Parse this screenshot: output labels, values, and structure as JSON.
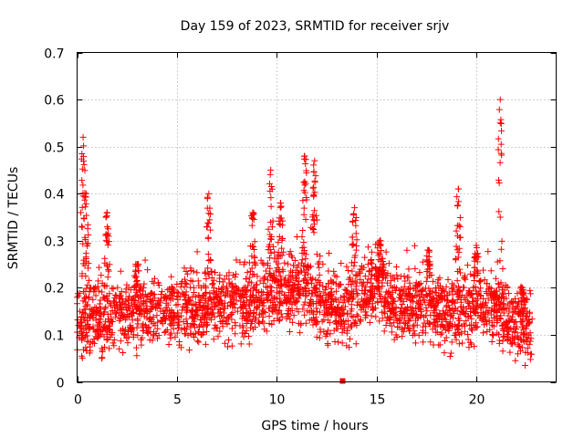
{
  "chart_data": {
    "type": "scatter",
    "title": "Day 159 of 2023, SRMTID for receiver srjv",
    "xlabel": "GPS time / hours",
    "ylabel": "SRMTID / TECUs",
    "xlim": [
      0,
      24
    ],
    "ylim": [
      0,
      0.7
    ],
    "x_ticks": [
      0,
      5,
      10,
      15,
      20
    ],
    "x_tick_labels": [
      "0",
      "5",
      "10",
      "15",
      "20"
    ],
    "y_ticks": [
      0,
      0.1,
      0.2,
      0.3,
      0.4,
      0.5,
      0.6,
      0.7
    ],
    "y_tick_labels": [
      "0",
      "0.1",
      "0.2",
      "0.3",
      "0.4",
      "0.5",
      "0.6",
      "0.7"
    ],
    "grid": true,
    "marker": "plus",
    "color": "#ff0000",
    "series": [
      {
        "name": "SRMTID",
        "description": "Dense per-satellite-pass SRMTID scatter over 24 h; baseline approx. 0.1-0.2 TECU with peaks per listed spikes",
        "baseline_profile": [
          [
            0,
            0.13
          ],
          [
            1,
            0.13
          ],
          [
            2,
            0.14
          ],
          [
            3,
            0.15
          ],
          [
            4,
            0.15
          ],
          [
            5,
            0.15
          ],
          [
            6,
            0.15
          ],
          [
            7,
            0.17
          ],
          [
            8,
            0.16
          ],
          [
            9,
            0.17
          ],
          [
            10,
            0.2
          ],
          [
            11,
            0.2
          ],
          [
            12,
            0.18
          ],
          [
            13,
            0.15
          ],
          [
            14,
            0.18
          ],
          [
            15,
            0.2
          ],
          [
            16,
            0.17
          ],
          [
            17,
            0.16
          ],
          [
            18,
            0.15
          ],
          [
            19,
            0.14
          ],
          [
            20,
            0.17
          ],
          [
            21,
            0.16
          ],
          [
            22,
            0.12
          ],
          [
            22.8,
            0.11
          ]
        ],
        "spikes": [
          {
            "x": 0.3,
            "peak": 0.52
          },
          {
            "x": 0.45,
            "peak": 0.4
          },
          {
            "x": 1.5,
            "peak": 0.36
          },
          {
            "x": 3.0,
            "peak": 0.25
          },
          {
            "x": 6.6,
            "peak": 0.4
          },
          {
            "x": 8.8,
            "peak": 0.36
          },
          {
            "x": 9.7,
            "peak": 0.45
          },
          {
            "x": 10.2,
            "peak": 0.38
          },
          {
            "x": 11.4,
            "peak": 0.48
          },
          {
            "x": 11.9,
            "peak": 0.47
          },
          {
            "x": 13.9,
            "peak": 0.37
          },
          {
            "x": 15.2,
            "peak": 0.3
          },
          {
            "x": 17.6,
            "peak": 0.28
          },
          {
            "x": 19.1,
            "peak": 0.41
          },
          {
            "x": 20.0,
            "peak": 0.29
          },
          {
            "x": 21.2,
            "peak": 0.6
          },
          {
            "x": 22.3,
            "peak": 0.2
          }
        ],
        "outliers_low": [
          {
            "x": 13.3,
            "y": 0.0
          }
        ]
      }
    ]
  }
}
